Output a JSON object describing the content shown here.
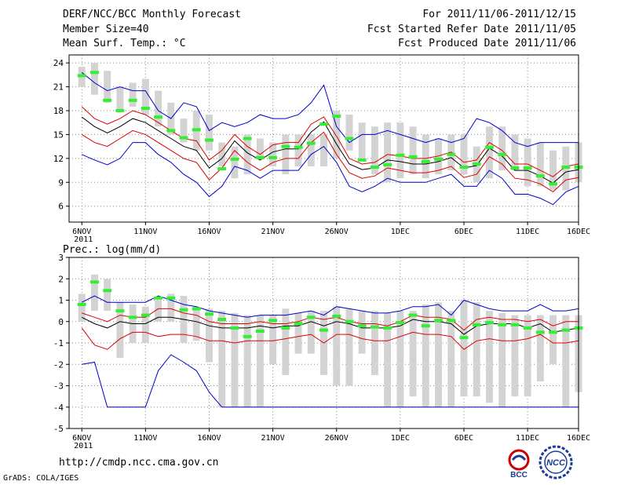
{
  "header": {
    "line1_left": "DERF/NCC/BCC Monthly Forecast",
    "line2_left": "Member Size=40",
    "line3_left": "Mean Surf. Temp.: °C",
    "line1_right": "For 2011/11/06-2011/12/15",
    "line2_right": "Fcst Started Refer Date 2011/11/05",
    "line3_right": "Fcst Produced Date 2011/11/06"
  },
  "footer": {
    "url": "http://cmdp.ncc.cma.gov.cn",
    "grads": "GrADS: COLA/IGES",
    "logo1_text": "BCC",
    "logo2_text": "NCC"
  },
  "colors": {
    "box": "#d3d3d3",
    "obs": "#33ee33",
    "mean": "#000000",
    "spread": "#dd0000",
    "extreme": "#0000cc",
    "grid": "#888888"
  },
  "chart_data": [
    {
      "type": "ensemble-boxplot",
      "title": "Mean Surf. Temp.: °C",
      "ylim": [
        4,
        25
      ],
      "yticks": [
        6,
        9,
        12,
        15,
        18,
        21,
        24
      ],
      "xlim": [
        0,
        40
      ],
      "xticks": [
        {
          "pos": 1,
          "label": "6NOV",
          "sub": "2011"
        },
        {
          "pos": 6,
          "label": "11NOV"
        },
        {
          "pos": 11,
          "label": "16NOV"
        },
        {
          "pos": 16,
          "label": "21NOV"
        },
        {
          "pos": 21,
          "label": "26NOV"
        },
        {
          "pos": 26,
          "label": "1DEC"
        },
        {
          "pos": 31,
          "label": "6DEC"
        },
        {
          "pos": 36,
          "label": "11DEC"
        },
        {
          "pos": 40,
          "label": "16DEC"
        }
      ],
      "box_low": [
        21,
        20,
        19,
        18,
        18.5,
        17.5,
        16,
        15,
        14,
        13,
        13,
        11,
        9.5,
        10,
        12,
        11,
        10,
        11,
        11,
        11,
        12,
        13,
        12,
        10,
        9,
        9.5,
        10,
        9.5,
        10,
        10.5,
        10,
        9,
        9.5,
        10.5,
        10.5,
        8.5,
        8.5,
        8,
        8,
        9
      ],
      "box_high": [
        23.5,
        24,
        23,
        21,
        21.5,
        22,
        20.5,
        19,
        17,
        18,
        17.5,
        14,
        13.5,
        15,
        14.5,
        14,
        15,
        15,
        15,
        15,
        18,
        17.5,
        16.5,
        16,
        16.5,
        16.5,
        16,
        15,
        14.5,
        15,
        15,
        13.5,
        16,
        16,
        15,
        14.5,
        14,
        13,
        13.5,
        14
      ],
      "obs": [
        22.4,
        22.8,
        19.3,
        18.0,
        19.3,
        18.3,
        17.2,
        15.5,
        14.6,
        15.6,
        14.3,
        10.7,
        11.9,
        14.5,
        12.1,
        12.1,
        13.5,
        13.4,
        13.9,
        16.3,
        17.3,
        14.5,
        11.8,
        10.9,
        11.2,
        12.4,
        12.2,
        11.6,
        11.9,
        12.5,
        10.9,
        11.3,
        13.4,
        12.5,
        10.8,
        10.8,
        9.8,
        8.8,
        10.9,
        10.9
      ],
      "ens_max": [
        22.8,
        21.5,
        20.5,
        21.0,
        20.5,
        20.5,
        18.0,
        17.0,
        19.0,
        18.5,
        15.5,
        16.5,
        16.0,
        16.5,
        17.5,
        17.0,
        17.0,
        17.5,
        19.0,
        21.2,
        16.0,
        14.0,
        15.0,
        15.0,
        15.5,
        15.0,
        14.5,
        14.0,
        14.5,
        14.0,
        14.5,
        17.0,
        16.5,
        15.5,
        14.0,
        13.5,
        14.0,
        14.0,
        14.0,
        14.0
      ],
      "ens_hi": [
        18.5,
        17.0,
        16.3,
        17.0,
        18.0,
        17.5,
        16.5,
        15.5,
        14.5,
        14.2,
        11.8,
        13.0,
        15.0,
        13.5,
        12.5,
        13.7,
        14.0,
        14.0,
        16.3,
        17.2,
        14.8,
        12.0,
        11.3,
        11.5,
        12.5,
        12.3,
        12.0,
        12.0,
        12.3,
        12.8,
        11.5,
        11.8,
        14.0,
        13.0,
        11.3,
        11.3,
        10.5,
        9.7,
        11.0,
        11.3
      ],
      "ens_mean": [
        17.2,
        16.0,
        15.2,
        16.0,
        17.0,
        16.5,
        15.5,
        14.5,
        13.5,
        13.0,
        10.8,
        12.0,
        14.2,
        12.7,
        11.8,
        12.8,
        13.2,
        13.2,
        15.3,
        16.6,
        13.8,
        11.3,
        10.6,
        10.8,
        11.8,
        11.6,
        11.3,
        11.3,
        11.6,
        12.1,
        10.8,
        11.1,
        13.3,
        12.3,
        10.5,
        10.5,
        9.8,
        8.9,
        10.3,
        10.6
      ],
      "ens_lo": [
        15.0,
        14.0,
        13.5,
        14.5,
        15.5,
        15.0,
        14.0,
        13.0,
        12.0,
        11.5,
        9.3,
        10.8,
        13.0,
        11.5,
        10.5,
        11.5,
        12.0,
        12.0,
        14.0,
        15.3,
        12.5,
        10.2,
        9.5,
        9.8,
        10.8,
        10.5,
        10.2,
        10.2,
        10.5,
        11.0,
        9.6,
        10.0,
        12.2,
        11.3,
        9.5,
        9.3,
        8.8,
        7.8,
        9.3,
        9.6
      ],
      "ens_min": [
        12.5,
        11.8,
        11.2,
        12.0,
        14.0,
        14.0,
        12.5,
        11.5,
        10.0,
        9.0,
        7.2,
        8.5,
        11.0,
        10.5,
        9.5,
        10.5,
        10.5,
        10.5,
        12.5,
        13.5,
        11.5,
        8.5,
        7.8,
        8.5,
        9.5,
        9.0,
        9.0,
        9.0,
        9.5,
        10.0,
        8.5,
        8.5,
        10.5,
        9.5,
        7.5,
        7.5,
        7.0,
        6.2,
        7.8,
        8.5
      ]
    },
    {
      "type": "ensemble-boxplot",
      "title": "Prec.: log(mm/d)",
      "ylim": [
        -5,
        3
      ],
      "yticks": [
        -5,
        -4,
        -3,
        -2,
        -1,
        0,
        1,
        2,
        3
      ],
      "xlim": [
        0,
        40
      ],
      "xticks": [
        {
          "pos": 1,
          "label": "6NOV",
          "sub": "2011"
        },
        {
          "pos": 6,
          "label": "11NOV"
        },
        {
          "pos": 11,
          "label": "16NOV"
        },
        {
          "pos": 16,
          "label": "21NOV"
        },
        {
          "pos": 21,
          "label": "26NOV"
        },
        {
          "pos": 26,
          "label": "1DEC"
        },
        {
          "pos": 31,
          "label": "6DEC"
        },
        {
          "pos": 36,
          "label": "11DEC"
        },
        {
          "pos": 40,
          "label": "16DEC"
        }
      ],
      "box_low": [
        0.0,
        0.5,
        0.5,
        -1.7,
        -1.0,
        -1.0,
        0.0,
        0.0,
        -1.0,
        -0.9,
        -1.9,
        -4.0,
        -4.0,
        -4.0,
        -4.0,
        -2.0,
        -2.5,
        -1.5,
        -1.5,
        -2.5,
        -3.0,
        -3.0,
        -1.5,
        -2.5,
        -4.0,
        -4.0,
        -3.5,
        -4.0,
        -4.0,
        -4.0,
        -3.5,
        -3.5,
        -3.8,
        -4.0,
        -3.5,
        -3.5,
        -2.8,
        -2.0,
        -4.0,
        -3.3
      ],
      "box_high": [
        1.3,
        2.2,
        2.0,
        0.9,
        0.8,
        0.7,
        1.0,
        1.3,
        1.2,
        0.7,
        0.6,
        0.5,
        0.4,
        0.3,
        0.3,
        0.3,
        0.6,
        0.4,
        0.5,
        0.5,
        0.7,
        0.6,
        0.5,
        0.5,
        0.4,
        0.5,
        0.5,
        0.8,
        0.9,
        0.5,
        1.0,
        0.9,
        0.5,
        0.4,
        0.3,
        0.3,
        0.3,
        0.3,
        0.3,
        0.3
      ],
      "obs": [
        0.8,
        1.85,
        1.45,
        0.5,
        0.2,
        0.3,
        1.1,
        1.1,
        0.55,
        0.6,
        0.35,
        0.1,
        -0.3,
        -0.7,
        -0.45,
        0.05,
        -0.3,
        -0.1,
        0.2,
        -0.4,
        0.25,
        0.0,
        -0.2,
        -0.25,
        -0.3,
        -0.05,
        0.3,
        -0.2,
        0.05,
        0.05,
        -0.75,
        -0.15,
        -0.05,
        -0.15,
        -0.15,
        -0.3,
        -0.5,
        -0.5,
        -0.4,
        -0.3
      ],
      "ens_max": [
        0.9,
        1.2,
        0.9,
        0.9,
        0.9,
        0.9,
        1.2,
        1.0,
        0.8,
        0.7,
        0.5,
        0.4,
        0.3,
        0.2,
        0.3,
        0.3,
        0.3,
        0.4,
        0.5,
        0.3,
        0.7,
        0.6,
        0.5,
        0.4,
        0.4,
        0.5,
        0.7,
        0.7,
        0.8,
        0.3,
        1.0,
        0.8,
        0.6,
        0.5,
        0.5,
        0.5,
        0.8,
        0.5,
        0.5,
        0.6
      ],
      "ens_hi": [
        0.4,
        0.2,
        0.0,
        0.3,
        0.2,
        0.2,
        0.6,
        0.6,
        0.4,
        0.3,
        0.0,
        -0.1,
        -0.1,
        -0.1,
        0.0,
        -0.1,
        -0.1,
        0.0,
        0.2,
        0.1,
        0.2,
        0.0,
        -0.1,
        -0.1,
        -0.2,
        0.0,
        0.3,
        0.2,
        0.2,
        0.1,
        -0.4,
        0.1,
        0.2,
        0.1,
        0.1,
        0.0,
        0.1,
        -0.2,
        0.0,
        0.0
      ],
      "ens_mean": [
        0.2,
        -0.1,
        -0.3,
        0.0,
        -0.1,
        -0.1,
        0.2,
        0.2,
        0.1,
        0.0,
        -0.2,
        -0.3,
        -0.3,
        -0.3,
        -0.2,
        -0.3,
        -0.2,
        -0.2,
        0.0,
        -0.2,
        0.0,
        -0.1,
        -0.3,
        -0.3,
        -0.3,
        -0.2,
        0.1,
        0.0,
        0.0,
        -0.1,
        -0.6,
        -0.2,
        -0.1,
        -0.1,
        -0.1,
        -0.3,
        -0.1,
        -0.5,
        -0.4,
        -0.3
      ],
      "ens_lo": [
        -0.3,
        -1.1,
        -1.3,
        -0.8,
        -0.5,
        -0.5,
        -0.7,
        -0.6,
        -0.6,
        -0.7,
        -0.9,
        -0.9,
        -1.0,
        -0.9,
        -0.9,
        -0.9,
        -0.8,
        -0.7,
        -0.6,
        -1.0,
        -0.6,
        -0.6,
        -0.8,
        -0.9,
        -0.9,
        -0.7,
        -0.5,
        -0.6,
        -0.6,
        -0.7,
        -1.3,
        -0.9,
        -0.8,
        -0.9,
        -0.9,
        -0.8,
        -0.6,
        -1.0,
        -1.0,
        -0.9
      ],
      "ens_min": [
        -2.0,
        -1.9,
        -4.0,
        -4.0,
        -4.0,
        -4.0,
        -2.3,
        -1.55,
        -1.9,
        -2.3,
        -3.3,
        -4.0,
        -4.0,
        -4.0,
        -4.0,
        -4.0,
        -4.0,
        -4.0,
        -4.0,
        -4.0,
        -4.0,
        -4.0,
        -4.0,
        -4.0,
        -4.0,
        -4.0,
        -4.0,
        -4.0,
        -4.0,
        -4.0,
        -4.0,
        -4.0,
        -4.0,
        -4.0,
        -4.0,
        -4.0,
        -4.0,
        -4.0,
        -4.0,
        -4.0
      ]
    }
  ]
}
